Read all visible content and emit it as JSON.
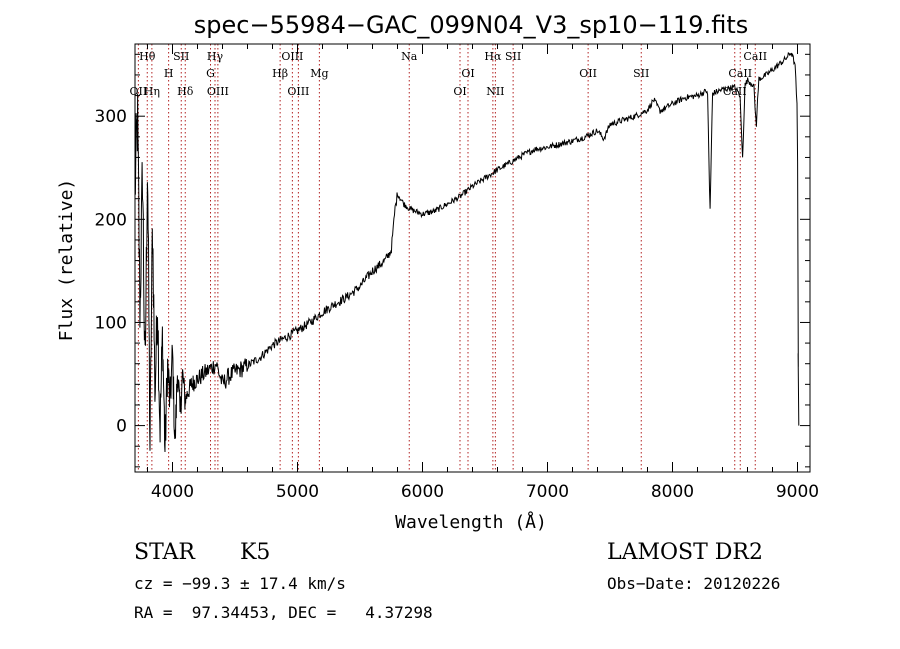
{
  "chart_data": {
    "type": "line",
    "title": "spec−55984−GAC_099N04_V3_sp10−119.fits",
    "xlabel": "Wavelength (Å)",
    "ylabel": "Flux (relative)",
    "xlim": [
      3700,
      9100
    ],
    "ylim": [
      -45,
      370
    ],
    "x_ticks": [
      4000,
      5000,
      6000,
      7000,
      8000,
      9000
    ],
    "y_ticks": [
      0,
      100,
      200,
      300
    ],
    "grid": false,
    "line_color": "#000000",
    "marker_color": "#b22222",
    "spectrum": [
      [
        3700,
        230
      ],
      [
        3720,
        300
      ],
      [
        3740,
        110
      ],
      [
        3760,
        250
      ],
      [
        3780,
        40
      ],
      [
        3800,
        260
      ],
      [
        3820,
        -20
      ],
      [
        3840,
        200
      ],
      [
        3860,
        30
      ],
      [
        3880,
        120
      ],
      [
        3900,
        -5
      ],
      [
        3920,
        90
      ],
      [
        3940,
        -25
      ],
      [
        3960,
        60
      ],
      [
        3980,
        20
      ],
      [
        4000,
        70
      ],
      [
        4020,
        -20
      ],
      [
        4040,
        55
      ],
      [
        4060,
        10
      ],
      [
        4080,
        50
      ],
      [
        4100,
        25
      ],
      [
        4150,
        40
      ],
      [
        4200,
        45
      ],
      [
        4250,
        50
      ],
      [
        4300,
        55
      ],
      [
        4350,
        60
      ],
      [
        4400,
        40
      ],
      [
        4450,
        48
      ],
      [
        4500,
        52
      ],
      [
        4600,
        58
      ],
      [
        4700,
        66
      ],
      [
        4800,
        78
      ],
      [
        4900,
        85
      ],
      [
        5000,
        92
      ],
      [
        5100,
        100
      ],
      [
        5200,
        110
      ],
      [
        5300,
        118
      ],
      [
        5400,
        125
      ],
      [
        5500,
        135
      ],
      [
        5600,
        150
      ],
      [
        5700,
        160
      ],
      [
        5750,
        170
      ],
      [
        5780,
        210
      ],
      [
        5800,
        225
      ],
      [
        5850,
        215
      ],
      [
        5900,
        210
      ],
      [
        6000,
        205
      ],
      [
        6100,
        208
      ],
      [
        6200,
        215
      ],
      [
        6300,
        222
      ],
      [
        6400,
        232
      ],
      [
        6500,
        240
      ],
      [
        6600,
        248
      ],
      [
        6700,
        255
      ],
      [
        6800,
        262
      ],
      [
        6900,
        268
      ],
      [
        7000,
        270
      ],
      [
        7100,
        273
      ],
      [
        7200,
        276
      ],
      [
        7300,
        280
      ],
      [
        7400,
        286
      ],
      [
        7450,
        278
      ],
      [
        7500,
        292
      ],
      [
        7600,
        296
      ],
      [
        7700,
        300
      ],
      [
        7800,
        306
      ],
      [
        7850,
        316
      ],
      [
        7900,
        305
      ],
      [
        8000,
        312
      ],
      [
        8100,
        318
      ],
      [
        8200,
        320
      ],
      [
        8280,
        325
      ],
      [
        8300,
        205
      ],
      [
        8320,
        322
      ],
      [
        8400,
        326
      ],
      [
        8500,
        328
      ],
      [
        8540,
        320
      ],
      [
        8560,
        258
      ],
      [
        8580,
        330
      ],
      [
        8600,
        335
      ],
      [
        8650,
        330
      ],
      [
        8670,
        290
      ],
      [
        8690,
        336
      ],
      [
        8750,
        340
      ],
      [
        8800,
        345
      ],
      [
        8850,
        350
      ],
      [
        8900,
        355
      ],
      [
        8950,
        362
      ],
      [
        8980,
        350
      ],
      [
        9000,
        300
      ],
      [
        9005,
        70
      ],
      [
        9010,
        0
      ]
    ],
    "line_markers": [
      {
        "label": "Hθ",
        "x": 3798,
        "row": 0
      },
      {
        "label": "OII",
        "x": 3727,
        "row": 2
      },
      {
        "label": "Hη",
        "x": 3835,
        "row": 2
      },
      {
        "label": "SII",
        "x": 4070,
        "row": 0
      },
      {
        "label": "H",
        "x": 3969,
        "row": 1
      },
      {
        "label": "Hδ",
        "x": 4102,
        "row": 2
      },
      {
        "label": "Hγ",
        "x": 4340,
        "row": 0
      },
      {
        "label": "G",
        "x": 4304,
        "row": 1
      },
      {
        "label": "OIII",
        "x": 4363,
        "row": 2
      },
      {
        "label": "OIII",
        "x": 4959,
        "row": 0
      },
      {
        "label": "Hβ",
        "x": 4861,
        "row": 1
      },
      {
        "label": "OIII",
        "x": 5007,
        "row": 2
      },
      {
        "label": "Mg",
        "x": 5175,
        "row": 1
      },
      {
        "label": "Na",
        "x": 5894,
        "row": 0
      },
      {
        "label": "OI",
        "x": 6364,
        "row": 1
      },
      {
        "label": "OI",
        "x": 6300,
        "row": 2
      },
      {
        "label": "Hα",
        "x": 6563,
        "row": 0
      },
      {
        "label": "SII",
        "x": 6725,
        "row": 0
      },
      {
        "label": "NII",
        "x": 6583,
        "row": 2
      },
      {
        "label": "OII",
        "x": 7325,
        "row": 1
      },
      {
        "label": "SII",
        "x": 7750,
        "row": 1
      },
      {
        "label": "CaII",
        "x": 8662,
        "row": 0
      },
      {
        "label": "CaII",
        "x": 8542,
        "row": 1
      },
      {
        "label": "CaII",
        "x": 8498,
        "row": 2
      }
    ]
  },
  "info": {
    "class": "STAR",
    "subclass": "K5",
    "survey": "LAMOST DR2",
    "cz": "cz = −99.3 ± 17.4 km/s",
    "obs_date": "Obs−Date: 20120226",
    "coords": "RA =  97.34453, DEC =   4.37298"
  }
}
